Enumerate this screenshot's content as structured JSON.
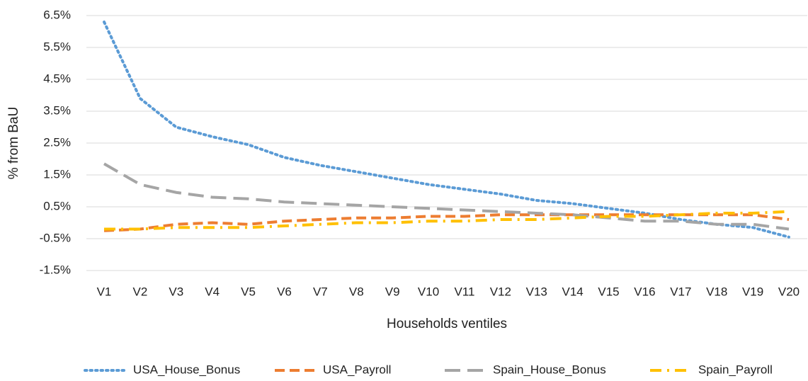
{
  "chart_data": {
    "type": "line",
    "x_label": "Households ventiles",
    "y_label": "% from BaU",
    "categories": [
      "V1",
      "V2",
      "V3",
      "V4",
      "V5",
      "V6",
      "V7",
      "V8",
      "V9",
      "V10",
      "V11",
      "V12",
      "V13",
      "V14",
      "V15",
      "V16",
      "V17",
      "V18",
      "V19",
      "V20"
    ],
    "ylim": [
      -1.5,
      6.5
    ],
    "yticks": [
      {
        "value": -1.5,
        "label": "-1.5%"
      },
      {
        "value": -0.5,
        "label": "-0.5%"
      },
      {
        "value": 0.5,
        "label": "0.5%"
      },
      {
        "value": 1.5,
        "label": "1.5%"
      },
      {
        "value": 2.5,
        "label": "2.5%"
      },
      {
        "value": 3.5,
        "label": "3.5%"
      },
      {
        "value": 4.5,
        "label": "4.5%"
      },
      {
        "value": 5.5,
        "label": "5.5%"
      },
      {
        "value": 6.5,
        "label": "6.5%"
      }
    ],
    "grid": true,
    "legend": "bottom",
    "series": [
      {
        "name": "USA_House_Bonus",
        "color": "#5b9bd5",
        "dash": "dot",
        "values": [
          6.3,
          3.9,
          3.0,
          2.7,
          2.45,
          2.05,
          1.8,
          1.6,
          1.4,
          1.2,
          1.05,
          0.9,
          0.7,
          0.6,
          0.45,
          0.3,
          0.1,
          -0.05,
          -0.15,
          -0.45
        ]
      },
      {
        "name": "USA_Payroll",
        "color": "#ed7d31",
        "dash": "dash",
        "values": [
          -0.25,
          -0.2,
          -0.05,
          0,
          -0.05,
          0.05,
          0.1,
          0.15,
          0.15,
          0.2,
          0.2,
          0.25,
          0.25,
          0.25,
          0.25,
          0.25,
          0.25,
          0.25,
          0.25,
          0.1
        ]
      },
      {
        "name": "Spain_House_Bonus",
        "color": "#a5a5a5",
        "dash": "longdash",
        "values": [
          1.85,
          1.2,
          0.95,
          0.8,
          0.75,
          0.65,
          0.6,
          0.55,
          0.5,
          0.45,
          0.4,
          0.35,
          0.3,
          0.25,
          0.15,
          0.05,
          0.05,
          -0.05,
          -0.05,
          -0.2
        ]
      },
      {
        "name": "Spain_Payroll",
        "color": "#ffc000",
        "dash": "dashdot",
        "values": [
          -0.2,
          -0.2,
          -0.15,
          -0.15,
          -0.15,
          -0.1,
          -0.05,
          0,
          0,
          0.05,
          0.05,
          0.1,
          0.1,
          0.15,
          0.2,
          0.2,
          0.25,
          0.3,
          0.3,
          0.35
        ]
      }
    ]
  }
}
